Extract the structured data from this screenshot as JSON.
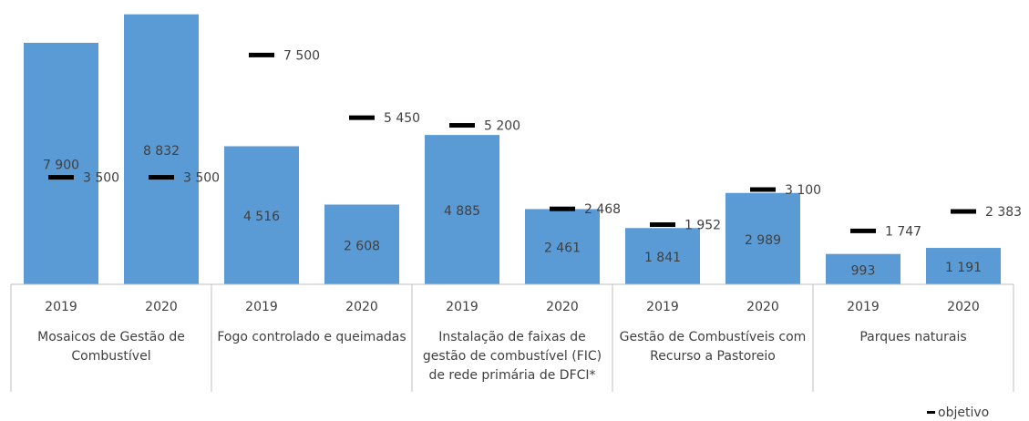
{
  "chart_data": {
    "type": "bar",
    "categories": [
      "2019",
      "2020",
      "2019",
      "2020",
      "2019",
      "2020",
      "2019",
      "2020",
      "2019",
      "2020"
    ],
    "groups": [
      "Mosaicos de Gestão de Combustível",
      "Fogo controlado e queimadas",
      "Instalação de faixas de gestão de combustível (FIC) de rede primária de DFCI*",
      "Gestão de Combustíveis com Recurso a Pastoreio",
      "Parques naturais"
    ],
    "values": [
      7900,
      8832,
      4516,
      2608,
      4885,
      2461,
      1841,
      2989,
      993,
      1191
    ],
    "value_labels": [
      "7 900",
      "8 832",
      "4 516",
      "2 608",
      "4 885",
      "2 461",
      "1 841",
      "2 989",
      "993",
      "1 191"
    ],
    "color": "#5b9bd5",
    "markers": {
      "name": "objetivo",
      "color": "#000000",
      "values": [
        3500,
        3500,
        7500,
        5450,
        5200,
        2468,
        1952,
        3100,
        1747,
        2383
      ],
      "value_labels": [
        "3 500",
        "3 500",
        "7 500",
        "5 450",
        "5 200",
        "2 468",
        "1 952",
        "3 100",
        "1 747",
        "2 383"
      ]
    },
    "ylim": [
      0,
      9300
    ],
    "legend": "bottom-right"
  }
}
